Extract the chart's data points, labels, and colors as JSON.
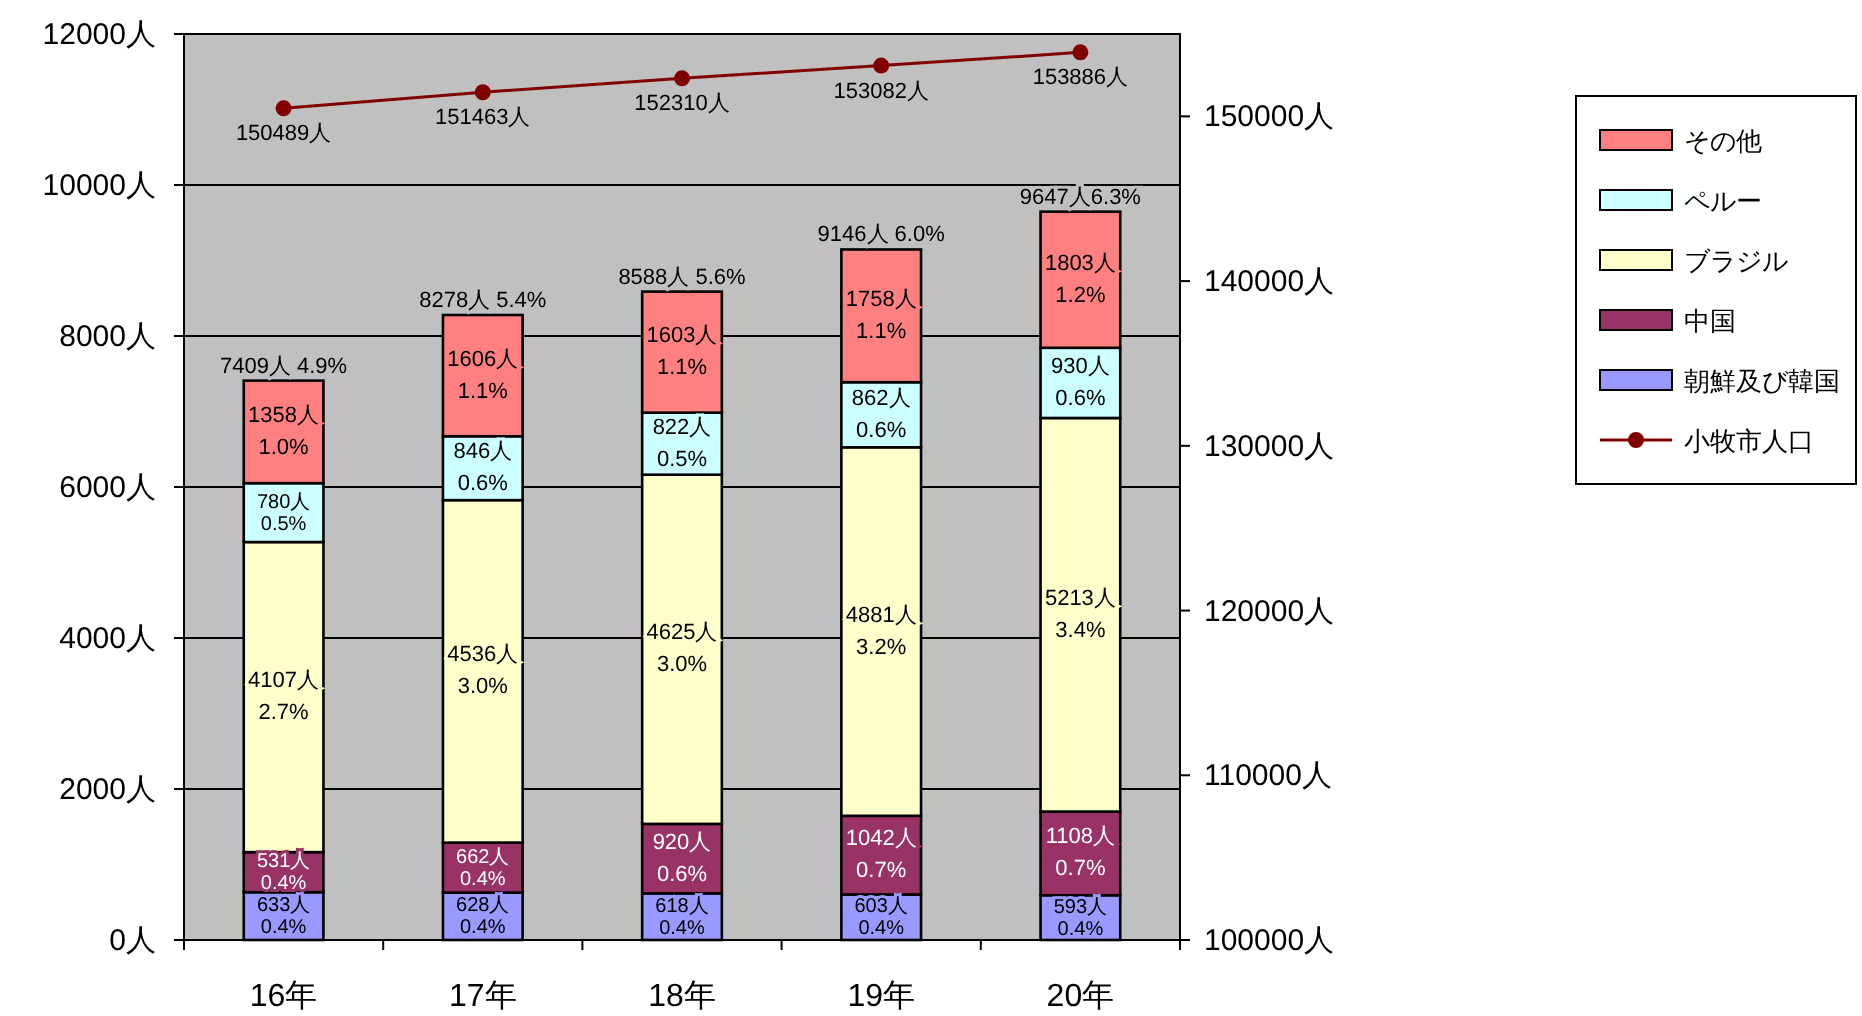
{
  "chart_data": {
    "type": "bar",
    "stacked": true,
    "categories": [
      "16年",
      "17年",
      "18年",
      "19年",
      "20年"
    ],
    "series": [
      {
        "name": "朝鮮及び韓国",
        "color": "#9999ff",
        "values": [
          633,
          628,
          618,
          603,
          593
        ],
        "value_labels": [
          "633人\n0.4%",
          "628人\n0.4%",
          "618人\n0.4%",
          "603人\n0.4%",
          "593人\n0.4%"
        ]
      },
      {
        "name": "中国",
        "color": "#993366",
        "values": [
          531,
          662,
          920,
          1042,
          1108
        ],
        "value_labels": [
          "531人\n0.4%",
          "662人\n0.4%",
          "920人\n0.6%",
          "1042人\n0.7%",
          "1108人\n0.7%"
        ]
      },
      {
        "name": "ブラジル",
        "color": "#ffffcc",
        "values": [
          4107,
          4536,
          4625,
          4881,
          5213
        ],
        "value_labels": [
          "4107人\n2.7%",
          "4536人\n3.0%",
          "4625人\n3.0%",
          "4881人\n3.2%",
          "5213人\n3.4%"
        ]
      },
      {
        "name": "ペルー",
        "color": "#ccffff",
        "values": [
          780,
          846,
          822,
          862,
          930
        ],
        "value_labels": [
          "780人\n0.5%",
          "846人\n0.6%",
          "822人\n0.5%",
          "862人\n0.6%",
          "930人\n0.6%"
        ]
      },
      {
        "name": "その他",
        "color": "#ff8080",
        "values": [
          1358,
          1606,
          1603,
          1758,
          1803
        ],
        "value_labels": [
          "1358人\n1.0%",
          "1606人\n1.1%",
          "1603人\n1.1%",
          "1758人\n1.1%",
          "1803人\n1.2%"
        ]
      },
      {
        "name": "小牧市人口",
        "type": "line",
        "axis": "y2",
        "color": "#800000",
        "marker": "circle",
        "values": [
          150489,
          151463,
          152310,
          153082,
          153886
        ],
        "value_labels": [
          "150489人",
          "151463人",
          "152310人",
          "153082人",
          "153886人"
        ]
      }
    ],
    "totals": [
      "7409人 4.9%",
      "8278人 5.4%",
      "8588人 5.6%",
      "9146人 6.0%",
      "9647人6.3%"
    ],
    "ylim": [
      0,
      12000
    ],
    "yticks": [
      {
        "value": 0,
        "label": "0人"
      },
      {
        "value": 2000,
        "label": "2000人"
      },
      {
        "value": 4000,
        "label": "4000人"
      },
      {
        "value": 6000,
        "label": "6000人"
      },
      {
        "value": 8000,
        "label": "8000人"
      },
      {
        "value": 10000,
        "label": "10000人"
      },
      {
        "value": 12000,
        "label": "12000人"
      }
    ],
    "y2lim": [
      100000,
      155000
    ],
    "y2ticks": [
      {
        "value": 100000,
        "label": "100000人"
      },
      {
        "value": 110000,
        "label": "110000人"
      },
      {
        "value": 120000,
        "label": "120000人"
      },
      {
        "value": 130000,
        "label": "130000人"
      },
      {
        "value": 140000,
        "label": "140000人"
      },
      {
        "value": 150000,
        "label": "150000人"
      }
    ],
    "grid": "y",
    "legend": "right"
  }
}
